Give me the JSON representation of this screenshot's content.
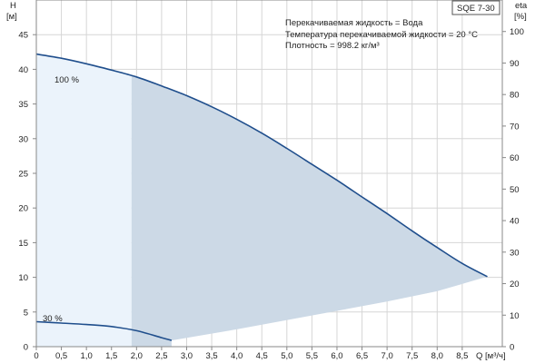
{
  "chart_data": {
    "type": "line",
    "title_box": "SQE 7-30",
    "info_lines": [
      "Перекачиваемая жидкость = Вода",
      "Температура перекачиваемой жидкости = 20 °C",
      "Плотность = 998.2 кг/м³"
    ],
    "y_left": {
      "label_top": "H",
      "label_unit": "[м]",
      "min": 0,
      "max": 50,
      "ticks": [
        0,
        5,
        10,
        15,
        20,
        25,
        30,
        35,
        40,
        45
      ]
    },
    "y_right": {
      "label_top": "eta",
      "label_unit": "[%]",
      "min": 0,
      "max": 110,
      "ticks": [
        0,
        10,
        20,
        30,
        40,
        50,
        60,
        70,
        80,
        90,
        100
      ]
    },
    "x": {
      "label": "Q [м³/ч]",
      "min": 0,
      "max": 9.3,
      "ticks": [
        0,
        0.5,
        1.0,
        1.5,
        2.0,
        2.5,
        3.0,
        3.5,
        4.0,
        4.5,
        5.0,
        5.5,
        6.0,
        6.5,
        7.0,
        7.5,
        8.0,
        8.5
      ],
      "tick_labels": [
        "0",
        "0,5",
        "1,0",
        "1,5",
        "2,0",
        "2,5",
        "3,0",
        "3,5",
        "4,0",
        "4,5",
        "5,0",
        "5,5",
        "6,0",
        "6,5",
        "7,0",
        "7,5",
        "8,0",
        "8,5"
      ]
    },
    "grid": true,
    "series": [
      {
        "name": "100 %",
        "x": [
          0,
          0.5,
          1.0,
          1.5,
          2.0,
          2.5,
          3.0,
          3.5,
          4.0,
          4.5,
          5.0,
          5.5,
          6.0,
          6.5,
          7.0,
          7.5,
          8.0,
          8.5,
          9.0
        ],
        "y": [
          42.2,
          41.6,
          40.8,
          39.9,
          38.9,
          37.6,
          36.2,
          34.6,
          32.8,
          30.8,
          28.6,
          26.3,
          24.0,
          21.6,
          19.2,
          16.7,
          14.3,
          12.0,
          10.1
        ]
      },
      {
        "name": "30 %",
        "x": [
          0,
          0.5,
          1.0,
          1.5,
          2.0,
          2.5,
          2.7
        ],
        "y": [
          3.6,
          3.4,
          3.2,
          2.9,
          2.3,
          1.3,
          0.9
        ]
      }
    ],
    "range_lower_x": [
      2.7,
      4.0,
      5.5,
      7.0,
      8.0,
      9.0
    ],
    "range_lower_y": [
      0.9,
      2.5,
      4.5,
      6.5,
      8.0,
      10.1
    ],
    "range_split_x": 1.9,
    "colors": {
      "curve": "#1f4e8c",
      "region_dark": "#ccd9e6",
      "region_light": "#ebf3fb",
      "grid": "#d6d6d6",
      "axis": "#888888"
    }
  }
}
